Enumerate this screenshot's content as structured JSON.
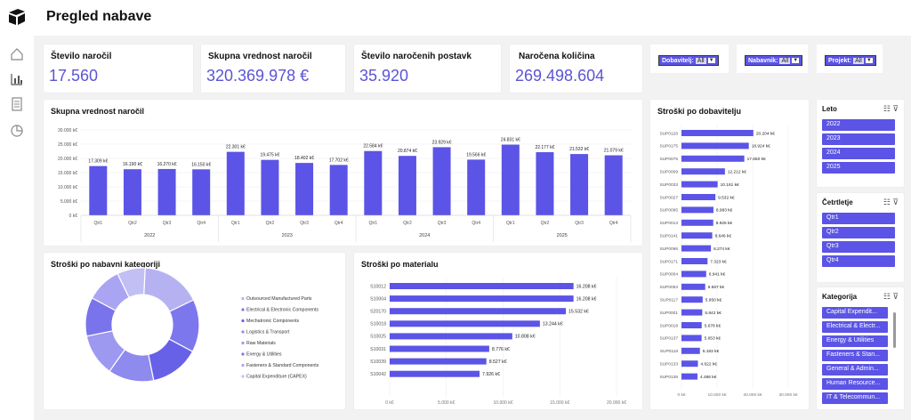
{
  "app": {
    "title": "Pregled nabave"
  },
  "kpis": [
    {
      "label": "Število naročil",
      "value": "17.560"
    },
    {
      "label": "Skupna vrednost naročil",
      "value": "320.369.978 €"
    },
    {
      "label": "Število naročenih postavk",
      "value": "35.920"
    },
    {
      "label": "Naročena količina",
      "value": "269.498.604"
    }
  ],
  "filters": [
    {
      "label": "Dobavitelj:",
      "value": "All"
    },
    {
      "label": "Nabavnik:",
      "value": "All"
    },
    {
      "label": "Projekt:",
      "value": "All"
    }
  ],
  "sidebar": {
    "icons": [
      "home-icon",
      "bar-chart-icon",
      "document-icon",
      "pie-chart-icon"
    ]
  },
  "colors": {
    "accent": "#5b54e6",
    "kpi_text": "#5b54d6"
  },
  "chart_data": [
    {
      "type": "bar",
      "title": "Skupna vrednost naročil",
      "categories": [
        "Qtr1",
        "Qtr2",
        "Qtr3",
        "Qtr4",
        "Qtr1",
        "Qtr2",
        "Qtr3",
        "Qtr4",
        "Qtr1",
        "Qtr2",
        "Qtr3",
        "Qtr4",
        "Qtr1",
        "Qtr2",
        "Qtr3",
        "Qtr4"
      ],
      "years": [
        "2022",
        "2023",
        "2024",
        "2025"
      ],
      "values": [
        17309,
        16190,
        16270,
        16150,
        22301,
        19475,
        18402,
        17702,
        22584,
        20874,
        23929,
        19566,
        24831,
        22177,
        21532,
        21079
      ],
      "labels": [
        "17.309 k€",
        "16.190 k€",
        "16.270 k€",
        "16.150 k€",
        "22.301 k€",
        "19.475 k€",
        "18.402 k€",
        "17.702 k€",
        "22.584 k€",
        "20.874 k€",
        "23.929 k€",
        "19.566 k€",
        "24.831 k€",
        "22.177 k€",
        "21.532 k€",
        "21.079 k€"
      ],
      "ylim": [
        0,
        30000
      ],
      "yticks": [
        "0 k€",
        "5.000 k€",
        "10.000 k€",
        "15.000 k€",
        "20.000 k€",
        "25.000 k€",
        "30.000 k€"
      ]
    },
    {
      "type": "pie",
      "title": "Stroški po nabavni kategoriji",
      "categories": [
        "Outsourced Manufactured Parts",
        "Electrical & Electronic Components",
        "Mechatronic Components",
        "Logistics & Transport",
        "Raw Materials",
        "Energy & Utilities",
        "Fasteners & Standard Components",
        "Capital Expenditure (CAPEX)"
      ],
      "values": [
        17,
        15,
        14,
        13,
        12,
        11,
        10,
        8
      ],
      "colors": [
        "#b6b2f2",
        "#7d77ee",
        "#6761e8",
        "#8f8aee",
        "#9d98f0",
        "#7a74ec",
        "#a9a5f2",
        "#c2bff5"
      ]
    },
    {
      "type": "bar",
      "title": "Stroški po materialu",
      "orientation": "horizontal",
      "categories": [
        "S10012",
        "S10004",
        "S20170",
        "S10018",
        "S10025",
        "S10031",
        "S10039",
        "S10042"
      ],
      "values": [
        16208,
        16208,
        15532,
        13244,
        10808,
        8776,
        8527,
        7926
      ],
      "labels": [
        "16.208 k€",
        "16.208 k€",
        "15.532 k€",
        "13.244 k€",
        "10.808 k€",
        "8.776 k€",
        "8.527 k€",
        "7.926 k€"
      ],
      "xlim": [
        0,
        20000
      ],
      "xticks": [
        "0 k€",
        "5.000 k€",
        "10.000 k€",
        "15.000 k€",
        "20.000 k€"
      ]
    },
    {
      "type": "bar",
      "title": "Stroški po dobavitelju",
      "orientation": "horizontal",
      "categories": [
        "SUP0126",
        "SUP0175",
        "SUP0075",
        "SUP0009",
        "SUP0033",
        "SUP0027",
        "SUP0095",
        "SUP0013",
        "SUP0141",
        "SUP0096",
        "SUP0171",
        "SUP0004",
        "SUP0053",
        "SUP0117",
        "SUP0001",
        "SUP0018",
        "SUP0137",
        "SUP0118",
        "SUP0133",
        "SUP0136"
      ],
      "values": [
        20204,
        18924,
        17650,
        12212,
        10161,
        9532,
        8983,
        8925,
        8646,
        8274,
        7323,
        6941,
        6667,
        5950,
        5842,
        5678,
        5653,
        5183,
        4622,
        4486
      ],
      "labels": [
        "20.204 k€",
        "18.924 k€",
        "17.650 k€",
        "12.212 k€",
        "10.161 k€",
        "9.532 k€",
        "8.983 k€",
        "8.925 k€",
        "8.646 k€",
        "8.274 k€",
        "7.323 k€",
        "6.941 k€",
        "6.667 k€",
        "5.950 k€",
        "5.842 k€",
        "5.678 k€",
        "5.653 k€",
        "5.183 k€",
        "4.622 k€",
        "4.486 k€"
      ],
      "xlim": [
        0,
        30000
      ],
      "xticks": [
        "0 k€",
        "10.000 k€",
        "20.000 k€",
        "30.000 k€"
      ]
    }
  ],
  "slicers": [
    {
      "title": "Leto",
      "items": [
        "2022",
        "2023",
        "2024",
        "2025"
      ]
    },
    {
      "title": "Četrtletje",
      "items": [
        "Qtr1",
        "Qtr2",
        "Qtr3",
        "Qtr4"
      ]
    },
    {
      "title": "Kategorija",
      "items": [
        "Capital Expendit...",
        "Electrical & Electr...",
        "Energy & Utilities",
        "Fasteners & Stan...",
        "General & Admin...",
        "Human Resource...",
        "IT & Telecommun..."
      ]
    }
  ]
}
